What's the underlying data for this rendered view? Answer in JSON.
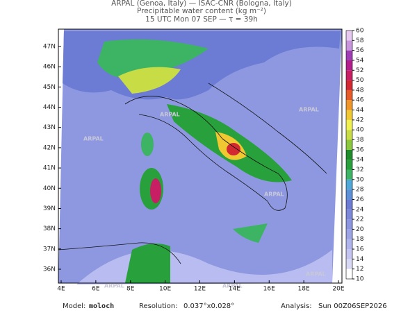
{
  "header": {
    "line1": "ARPAL (Genoa, Italy)  —  ISAC-CNR (Bologna, Italy)",
    "line2": "Precipitable water content (kg m⁻²)",
    "line3": "15 UTC Mon 07 SEP  —  τ = 39h"
  },
  "map": {
    "lon_labels": [
      "4E",
      "6E",
      "8E",
      "10E",
      "12E",
      "14E",
      "16E",
      "18E",
      "20E"
    ],
    "lat_labels": [
      "47N",
      "46N",
      "45N",
      "44N",
      "43N",
      "42N",
      "41N",
      "40N",
      "39N",
      "38N",
      "37N",
      "36N"
    ],
    "watermark": "ARPAL"
  },
  "colorbar": {
    "levels": [
      10,
      12,
      14,
      16,
      18,
      20,
      22,
      24,
      26,
      28,
      30,
      32,
      34,
      36,
      38,
      40,
      42,
      44,
      46,
      48,
      50,
      52,
      54,
      56,
      58,
      60
    ],
    "colors": [
      "#ffffff",
      "#d8d8f4",
      "#c4c4f0",
      "#b0b4ec",
      "#9ca4e6",
      "#8c96e0",
      "#7c88da",
      "#6c7cd4",
      "#5c90d8",
      "#50a8d8",
      "#3cb464",
      "#28a03c",
      "#1e8c28",
      "#8cc83c",
      "#c8dc46",
      "#f0f050",
      "#f0c832",
      "#f09628",
      "#e65a28",
      "#d22832",
      "#c81e64",
      "#b41e8c",
      "#a03cb4",
      "#c896dc",
      "#e6c8f0"
    ]
  },
  "footer": {
    "model_label": "Model:",
    "model": "moloch",
    "res_label": "Resolution:",
    "res": "0.037°x0.028°",
    "analysis_label": "Analysis:",
    "analysis": "Sun 00Z06SEP2026"
  }
}
